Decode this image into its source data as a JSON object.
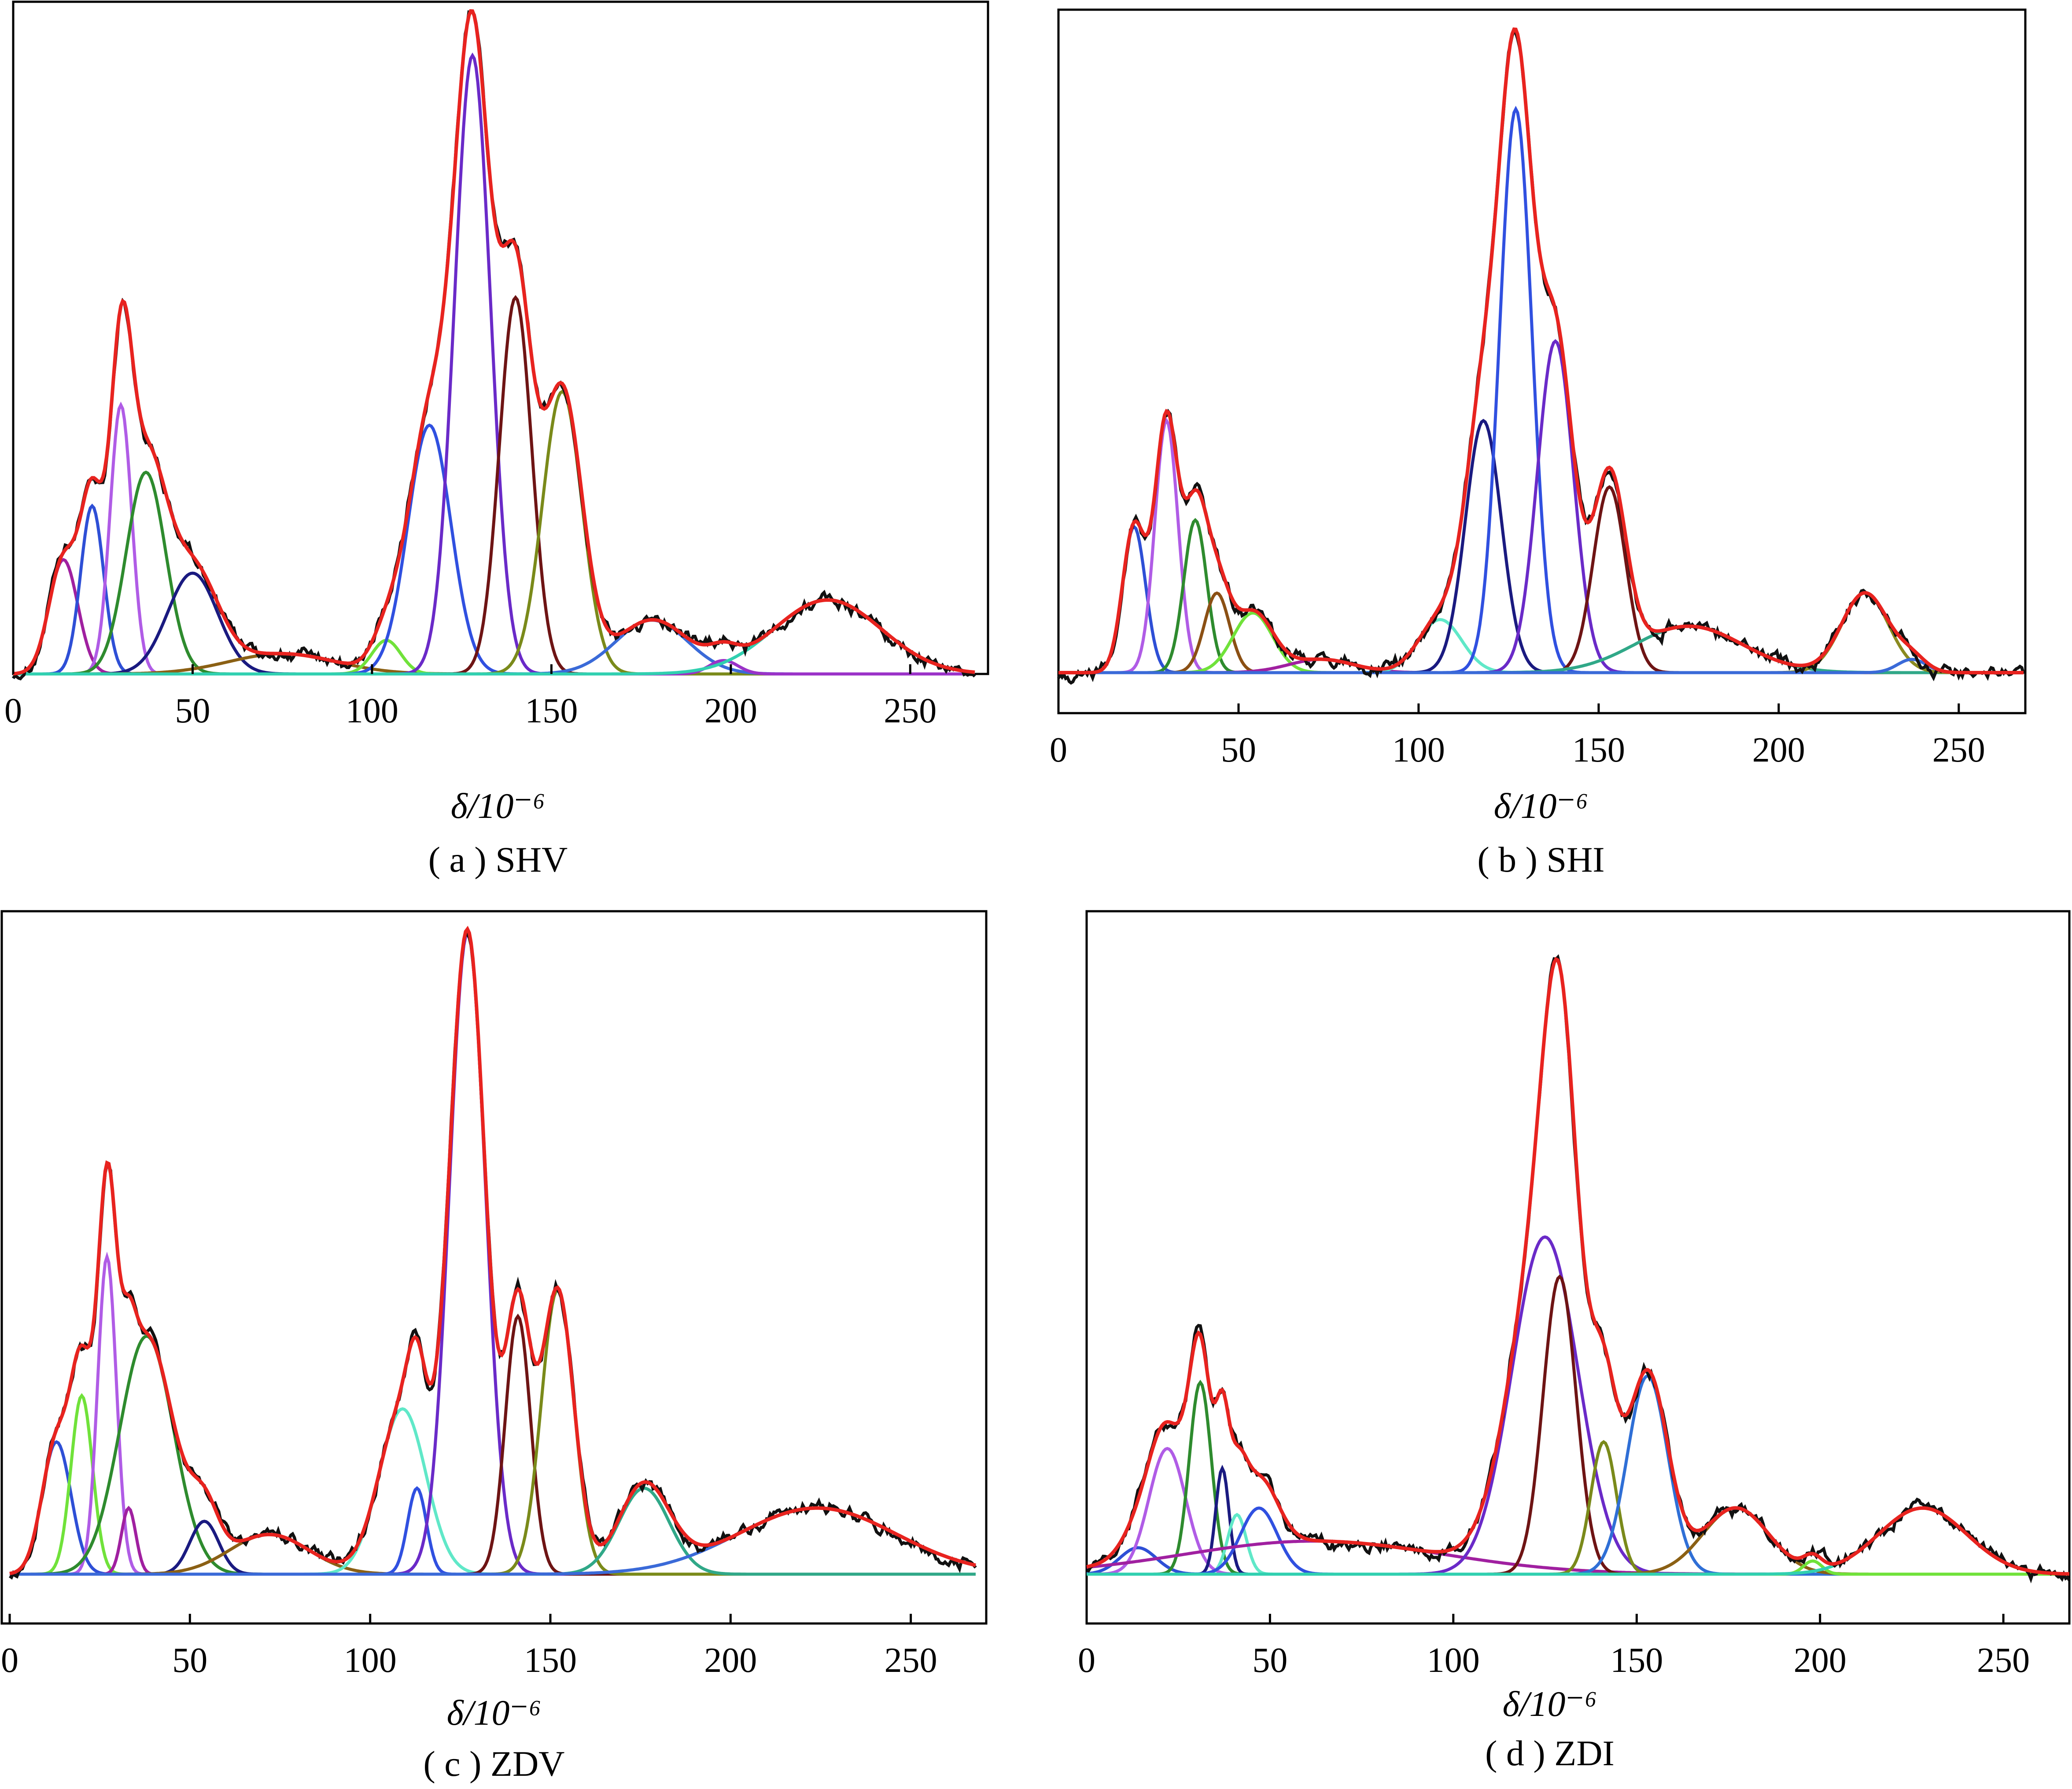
{
  "figure": {
    "panels": [
      {
        "id": "a",
        "caption": "( a ) SHV",
        "xlabel": "δ/10⁻⁶",
        "xticks": [
          "0",
          "50",
          "100",
          "150",
          "200",
          "250"
        ],
        "xlim": [
          0,
          268
        ],
        "ylim": [
          -0.02,
          1.0
        ],
        "gridlines": false
      },
      {
        "id": "b",
        "caption": "( b ) SHI",
        "xlabel": "δ/10⁻⁶",
        "xticks": [
          "0",
          "50",
          "100",
          "150",
          "200",
          "250"
        ],
        "xlim": [
          0,
          268
        ],
        "ylim": [
          -0.02,
          1.0
        ],
        "gridlines": false
      },
      {
        "id": "c",
        "caption": "( c ) ZDV",
        "xlabel": "δ/10⁻⁶",
        "xticks": [
          "0",
          "50",
          "100",
          "150",
          "200",
          "250"
        ],
        "xlim": [
          0,
          268
        ],
        "ylim": [
          -0.02,
          1.0
        ],
        "gridlines": false
      },
      {
        "id": "d",
        "caption": "( d ) ZDI",
        "xlabel": "δ/10⁻⁶",
        "xticks": [
          "0",
          "50",
          "100",
          "150",
          "200",
          "250"
        ],
        "xlim": [
          0,
          268
        ],
        "ylim": [
          -0.02,
          1.0
        ],
        "gridlines": false
      }
    ]
  },
  "chart_data": [
    {
      "type": "line",
      "panel": "a",
      "x_range": [
        0,
        268
      ],
      "y_range": [
        -0.02,
        1.0
      ],
      "colors": {
        "measured": "#111111",
        "fit": "#e8231f"
      },
      "components": [
        {
          "center": 14,
          "height": 0.17,
          "width": 4.0,
          "color": "#a020a0"
        },
        {
          "center": 22,
          "height": 0.25,
          "width": 3.2,
          "color": "#2e4fd6"
        },
        {
          "center": 30,
          "height": 0.4,
          "width": 3.0,
          "color": "#b05ce6"
        },
        {
          "center": 37,
          "height": 0.3,
          "width": 5.5,
          "color": "#2e8b2e"
        },
        {
          "center": 50,
          "height": 0.15,
          "width": 7.0,
          "color": "#1a1a80"
        },
        {
          "center": 75,
          "height": 0.03,
          "width": 15.0,
          "color": "#8b6014"
        },
        {
          "center": 104,
          "height": 0.05,
          "width": 4.0,
          "color": "#70e23a"
        },
        {
          "center": 116,
          "height": 0.37,
          "width": 6.0,
          "color": "#3050e0"
        },
        {
          "center": 128,
          "height": 0.92,
          "width": 5.0,
          "color": "#6a2ac8"
        },
        {
          "center": 140,
          "height": 0.56,
          "width": 4.5,
          "color": "#6e1414"
        },
        {
          "center": 153,
          "height": 0.42,
          "width": 5.5,
          "color": "#7a8a1a"
        },
        {
          "center": 178,
          "height": 0.08,
          "width": 10.0,
          "color": "#3a6ad8"
        },
        {
          "center": 198,
          "height": 0.02,
          "width": 4.0,
          "color": "#9a32c8"
        },
        {
          "center": 227,
          "height": 0.11,
          "width": 15.0,
          "color": "#30d0b0"
        }
      ]
    },
    {
      "type": "line",
      "panel": "b",
      "x_range": [
        0,
        268
      ],
      "y_range": [
        -0.02,
        1.0
      ],
      "colors": {
        "measured": "#111111",
        "fit": "#e8231f"
      },
      "components": [
        {
          "center": 21,
          "height": 0.22,
          "width": 3.2,
          "color": "#2e4fd6"
        },
        {
          "center": 30,
          "height": 0.38,
          "width": 3.2,
          "color": "#b05ce6"
        },
        {
          "center": 38,
          "height": 0.23,
          "width": 3.2,
          "color": "#2e8b2e"
        },
        {
          "center": 44,
          "height": 0.12,
          "width": 3.5,
          "color": "#8b5014"
        },
        {
          "center": 54,
          "height": 0.09,
          "width": 5.5,
          "color": "#70e23a"
        },
        {
          "center": 73,
          "height": 0.02,
          "width": 9.0,
          "color": "#a020a0"
        },
        {
          "center": 106,
          "height": 0.08,
          "width": 6.0,
          "color": "#60e8c8"
        },
        {
          "center": 118,
          "height": 0.38,
          "width": 5.0,
          "color": "#1a1a80"
        },
        {
          "center": 127,
          "height": 0.85,
          "width": 4.5,
          "color": "#3050e0"
        },
        {
          "center": 138,
          "height": 0.5,
          "width": 5.0,
          "color": "#6a2ac8"
        },
        {
          "center": 153,
          "height": 0.28,
          "width": 4.5,
          "color": "#6e1414"
        },
        {
          "center": 175,
          "height": 0.07,
          "width": 15.0,
          "color": "#30a888"
        },
        {
          "center": 224,
          "height": 0.12,
          "width": 6.5,
          "color": "#8a8a20"
        },
        {
          "center": 237,
          "height": 0.02,
          "width": 4.0,
          "color": "#3a6ad8"
        }
      ]
    },
    {
      "type": "line",
      "panel": "c",
      "x_range": [
        0,
        268
      ],
      "y_range": [
        -0.02,
        1.0
      ],
      "colors": {
        "measured": "#111111",
        "fit": "#e8231f"
      },
      "components": [
        {
          "center": 13,
          "height": 0.2,
          "width": 4.0,
          "color": "#2e4fd6"
        },
        {
          "center": 20,
          "height": 0.27,
          "width": 3.0,
          "color": "#70e23a"
        },
        {
          "center": 27,
          "height": 0.48,
          "width": 2.6,
          "color": "#b05ce6"
        },
        {
          "center": 33,
          "height": 0.1,
          "width": 2.0,
          "color": "#a020a0"
        },
        {
          "center": 38,
          "height": 0.36,
          "width": 7.5,
          "color": "#2e8b2e"
        },
        {
          "center": 54,
          "height": 0.08,
          "width": 4.0,
          "color": "#1a1a80"
        },
        {
          "center": 72,
          "height": 0.06,
          "width": 11.0,
          "color": "#8b6014"
        },
        {
          "center": 109,
          "height": 0.25,
          "width": 6.5,
          "color": "#60e8c8"
        },
        {
          "center": 113,
          "height": 0.13,
          "width": 2.6,
          "color": "#3050e0"
        },
        {
          "center": 127,
          "height": 0.97,
          "width": 5.0,
          "color": "#6a2ac8"
        },
        {
          "center": 141,
          "height": 0.39,
          "width": 3.5,
          "color": "#6e1414"
        },
        {
          "center": 152,
          "height": 0.43,
          "width": 4.5,
          "color": "#7a8a1a"
        },
        {
          "center": 176,
          "height": 0.13,
          "width": 7.0,
          "color": "#30a888"
        },
        {
          "center": 224,
          "height": 0.1,
          "width": 22.0,
          "color": "#3a6ad8"
        }
      ]
    },
    {
      "type": "line",
      "panel": "d",
      "x_range": [
        0,
        268
      ],
      "y_range": [
        -0.02,
        1.0
      ],
      "colors": {
        "measured": "#111111",
        "fit": "#e8231f"
      },
      "components": [
        {
          "center": 14,
          "height": 0.04,
          "width": 5.0,
          "color": "#2e4fd6"
        },
        {
          "center": 22,
          "height": 0.19,
          "width": 5.0,
          "color": "#b05ce6"
        },
        {
          "center": 31,
          "height": 0.29,
          "width": 3.0,
          "color": "#2e8b2e"
        },
        {
          "center": 37,
          "height": 0.16,
          "width": 1.8,
          "color": "#1a1a80"
        },
        {
          "center": 41,
          "height": 0.09,
          "width": 2.5,
          "color": "#60e8c8"
        },
        {
          "center": 47,
          "height": 0.1,
          "width": 5.0,
          "color": "#3050e0"
        },
        {
          "center": 62,
          "height": 0.05,
          "width": 35.0,
          "color": "#a020a0"
        },
        {
          "center": 125,
          "height": 0.51,
          "width": 9.0,
          "color": "#6a2ac8"
        },
        {
          "center": 129,
          "height": 0.45,
          "width": 4.5,
          "color": "#6e1414"
        },
        {
          "center": 141,
          "height": 0.2,
          "width": 3.5,
          "color": "#7a8a1a"
        },
        {
          "center": 153,
          "height": 0.3,
          "width": 5.5,
          "color": "#2f6fd6"
        },
        {
          "center": 177,
          "height": 0.1,
          "width": 9.0,
          "color": "#8b6014"
        },
        {
          "center": 198,
          "height": 0.02,
          "width": 2.5,
          "color": "#70e23a"
        },
        {
          "center": 228,
          "height": 0.1,
          "width": 12.0,
          "color": "#30d0b0"
        }
      ]
    }
  ]
}
